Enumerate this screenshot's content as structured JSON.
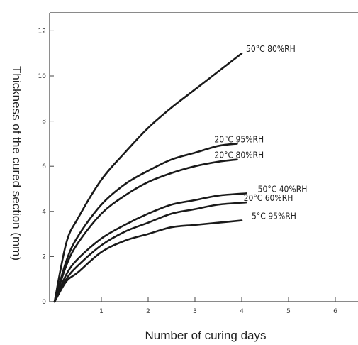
{
  "chart_data": {
    "type": "line",
    "title": "",
    "xlabel": "Number of curing days",
    "ylabel": "Thickness of the cured section (mm)",
    "xlim": [
      0,
      6.7
    ],
    "ylim": [
      0,
      12.6
    ],
    "x_ticks": [
      1,
      2,
      3,
      4,
      5,
      6
    ],
    "x_tick_labels": [
      "1",
      "2",
      "3",
      "4",
      "5",
      "6"
    ],
    "y_ticks": [
      0,
      2,
      4,
      6,
      8,
      10,
      12
    ],
    "y_tick_labels": [
      "0",
      "2",
      "4",
      "6",
      "8",
      "10",
      "12"
    ],
    "grid": false,
    "series": [
      {
        "name": "50°C  80%RH",
        "x": [
          0,
          0.25,
          0.5,
          1.0,
          1.5,
          2.0,
          2.5,
          3.0,
          3.5,
          4.0
        ],
        "values": [
          0,
          2.6,
          3.7,
          5.4,
          6.6,
          7.7,
          8.6,
          9.4,
          10.2,
          11.0
        ]
      },
      {
        "name": "20°C  95%RH",
        "x": [
          0,
          0.25,
          0.5,
          1.0,
          1.5,
          2.0,
          2.5,
          3.0,
          3.5,
          3.9
        ],
        "values": [
          0,
          1.8,
          2.9,
          4.3,
          5.2,
          5.8,
          6.3,
          6.6,
          6.9,
          7.0
        ]
      },
      {
        "name": "20°C  80%RH",
        "x": [
          0,
          0.25,
          0.5,
          1.0,
          1.5,
          2.0,
          2.5,
          3.0,
          3.5,
          3.9
        ],
        "values": [
          0,
          1.6,
          2.6,
          3.9,
          4.7,
          5.3,
          5.7,
          6.0,
          6.2,
          6.3
        ]
      },
      {
        "name": "50°C  40%RH",
        "x": [
          0,
          0.25,
          0.5,
          1.0,
          1.5,
          2.0,
          2.5,
          3.0,
          3.5,
          4.1
        ],
        "values": [
          0,
          1.2,
          1.9,
          2.8,
          3.4,
          3.9,
          4.3,
          4.5,
          4.7,
          4.8
        ]
      },
      {
        "name": "20°C  60%RH",
        "x": [
          0,
          0.25,
          0.5,
          1.0,
          1.5,
          2.0,
          2.5,
          3.0,
          3.5,
          4.1
        ],
        "values": [
          0,
          1.0,
          1.6,
          2.5,
          3.1,
          3.5,
          3.9,
          4.1,
          4.3,
          4.4
        ]
      },
      {
        "name": "5°C  95%RH",
        "x": [
          0,
          0.25,
          0.5,
          1.0,
          1.5,
          2.0,
          2.5,
          3.0,
          3.5,
          4.0
        ],
        "values": [
          0,
          0.9,
          1.3,
          2.2,
          2.7,
          3.0,
          3.3,
          3.4,
          3.5,
          3.6
        ]
      }
    ]
  }
}
